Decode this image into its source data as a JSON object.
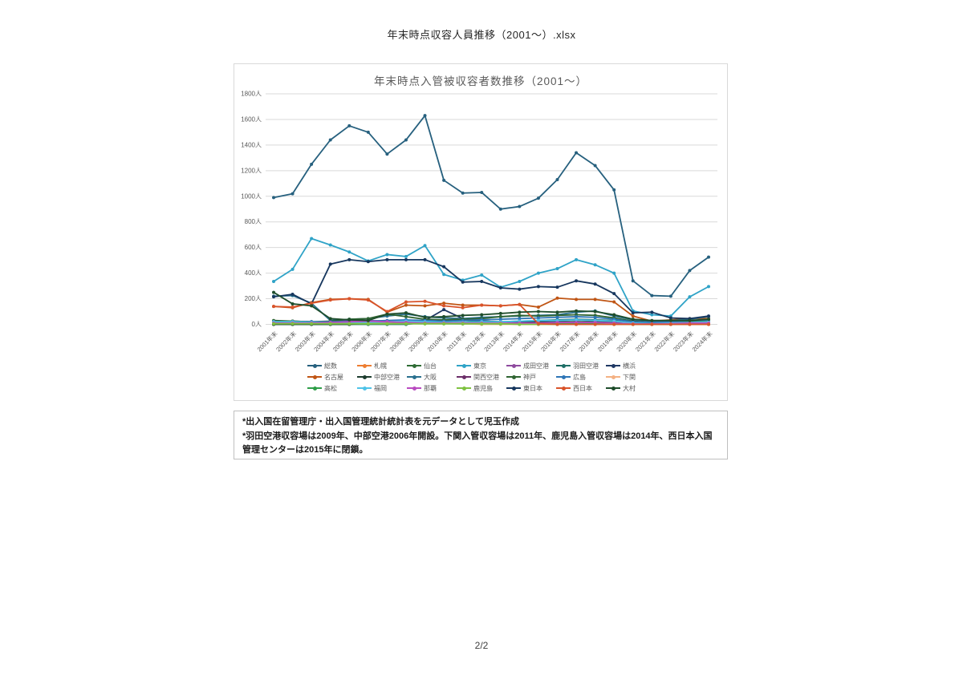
{
  "doc": {
    "title": "年末時点収容人員推移（2001〜）.xlsx"
  },
  "footer": {
    "page": "2/2"
  },
  "notes": {
    "line1": "*出入国在留管理庁・出入国管理統計統計表を元データとして児玉作成",
    "line2": "*羽田空港収容場は2009年、中部空港2006年開設。下関入管収容場は2011年、鹿児島入管収容場は2014年、西日本入国管理センターは2015年に閉鎖。"
  },
  "colors": {
    "grid": "#d9d9d9",
    "axis_text": "#595959",
    "panel_border": "#d9d9d9",
    "notes_border": "#bfbfbf"
  },
  "chart_data": {
    "type": "line",
    "title": "年末時点入管被収容者数推移（2001〜）",
    "xlabel": "",
    "ylabel": "",
    "ylim": [
      0,
      1800
    ],
    "ystep": 200,
    "unit_suffix": "人",
    "grid": true,
    "legend_position": "bottom",
    "y_ticks": [
      "0人",
      "200人",
      "400人",
      "600人",
      "800人",
      "1000人",
      "1200人",
      "1400人",
      "1600人",
      "1800人"
    ],
    "categories": [
      "2001年末",
      "2002年末",
      "2003年末",
      "2004年末",
      "2005年末",
      "2006年末",
      "2007年末",
      "2008年末",
      "2009年末",
      "2010年末",
      "2011年末",
      "2012年末",
      "2013年末",
      "2014年末",
      "2015年末",
      "2016年末",
      "2017年末",
      "2018年末",
      "2019年末",
      "2020年末",
      "2021年末",
      "2022年末",
      "2023年末",
      "2024年末"
    ],
    "series": [
      {
        "name": "総数",
        "color": "#26607E",
        "values": [
          990,
          1020,
          1250,
          1440,
          1550,
          1500,
          1330,
          1440,
          1630,
          1125,
          1025,
          1030,
          900,
          920,
          985,
          1130,
          1340,
          1240,
          1050,
          340,
          225,
          220,
          420,
          525
        ]
      },
      {
        "name": "札幌",
        "color": "#ED7D31",
        "values": [
          12,
          10,
          8,
          10,
          12,
          10,
          8,
          14,
          12,
          10,
          8,
          8,
          6,
          5,
          6,
          10,
          12,
          10,
          6,
          2,
          1,
          3,
          5,
          6
        ]
      },
      {
        "name": "仙台",
        "color": "#2E6B34",
        "values": [
          6,
          5,
          5,
          6,
          5,
          6,
          5,
          8,
          10,
          6,
          5,
          5,
          4,
          4,
          5,
          8,
          10,
          8,
          5,
          1,
          0,
          1,
          4,
          5
        ]
      },
      {
        "name": "東京",
        "color": "#2FA3C7",
        "values": [
          335,
          430,
          670,
          620,
          565,
          495,
          545,
          530,
          615,
          390,
          345,
          385,
          290,
          335,
          400,
          435,
          505,
          465,
          400,
          105,
          75,
          65,
          215,
          295
        ]
      },
      {
        "name": "成田空港",
        "color": "#8E4A9E",
        "values": [
          15,
          14,
          16,
          20,
          35,
          30,
          25,
          20,
          15,
          14,
          10,
          14,
          10,
          10,
          15,
          16,
          20,
          15,
          14,
          4,
          2,
          4,
          10,
          12
        ]
      },
      {
        "name": "羽田空港",
        "color": "#1E6E66",
        "values": [
          0,
          0,
          0,
          0,
          0,
          0,
          0,
          0,
          15,
          25,
          30,
          25,
          20,
          25,
          30,
          35,
          40,
          35,
          30,
          10,
          5,
          10,
          20,
          25
        ]
      },
      {
        "name": "横浜",
        "color": "#1F3864",
        "values": [
          20,
          25,
          20,
          15,
          15,
          15,
          20,
          25,
          30,
          115,
          45,
          25,
          20,
          20,
          25,
          30,
          35,
          30,
          25,
          10,
          8,
          10,
          15,
          20
        ]
      },
      {
        "name": "名古屋",
        "color": "#C05514",
        "values": [
          140,
          130,
          170,
          195,
          200,
          195,
          95,
          150,
          145,
          165,
          150,
          150,
          145,
          155,
          135,
          205,
          195,
          195,
          175,
          65,
          25,
          35,
          45,
          45
        ]
      },
      {
        "name": "中部空港",
        "color": "#1C3C2E",
        "values": [
          0,
          0,
          0,
          0,
          0,
          10,
          15,
          20,
          15,
          14,
          14,
          14,
          10,
          10,
          15,
          20,
          20,
          20,
          15,
          5,
          4,
          5,
          10,
          10
        ]
      },
      {
        "name": "大阪",
        "color": "#29708E",
        "values": [
          220,
          225,
          165,
          30,
          40,
          45,
          65,
          80,
          60,
          50,
          45,
          55,
          60,
          65,
          70,
          75,
          95,
          105,
          65,
          35,
          25,
          30,
          40,
          60
        ]
      },
      {
        "name": "関西空港",
        "color": "#6B2E68",
        "values": [
          15,
          14,
          10,
          10,
          10,
          10,
          10,
          10,
          10,
          10,
          10,
          10,
          5,
          5,
          10,
          10,
          10,
          10,
          10,
          4,
          2,
          4,
          5,
          6
        ]
      },
      {
        "name": "神戸",
        "color": "#2F6432",
        "values": [
          30,
          25,
          20,
          25,
          40,
          45,
          80,
          60,
          40,
          35,
          40,
          45,
          60,
          70,
          65,
          70,
          75,
          70,
          50,
          25,
          15,
          20,
          25,
          30
        ]
      },
      {
        "name": "広島",
        "color": "#2E75B6",
        "values": [
          20,
          20,
          20,
          20,
          25,
          25,
          30,
          35,
          30,
          25,
          30,
          35,
          40,
          45,
          50,
          55,
          60,
          55,
          40,
          20,
          15,
          20,
          30,
          35
        ]
      },
      {
        "name": "下関",
        "color": "#F4B183",
        "values": [
          15,
          14,
          10,
          10,
          10,
          10,
          10,
          10,
          10,
          10,
          5,
          0,
          0,
          0,
          0,
          0,
          0,
          0,
          0,
          0,
          0,
          0,
          0,
          0
        ]
      },
      {
        "name": "高松",
        "color": "#2F9E49",
        "values": [
          10,
          8,
          6,
          5,
          5,
          5,
          5,
          6,
          5,
          5,
          5,
          5,
          4,
          4,
          5,
          6,
          10,
          8,
          5,
          1,
          0,
          1,
          4,
          5
        ]
      },
      {
        "name": "福岡",
        "color": "#4FC3E8",
        "values": [
          20,
          20,
          15,
          15,
          15,
          15,
          20,
          25,
          20,
          15,
          15,
          20,
          20,
          25,
          30,
          30,
          35,
          30,
          25,
          10,
          5,
          10,
          15,
          20
        ]
      },
      {
        "name": "那覇",
        "color": "#B94BC0",
        "values": [
          10,
          10,
          10,
          15,
          20,
          25,
          20,
          15,
          10,
          10,
          10,
          10,
          10,
          10,
          10,
          15,
          15,
          15,
          10,
          4,
          4,
          5,
          10,
          10
        ]
      },
      {
        "name": "鹿児島",
        "color": "#7FC241",
        "values": [
          5,
          5,
          5,
          5,
          5,
          5,
          5,
          5,
          5,
          5,
          5,
          5,
          5,
          0,
          0,
          0,
          0,
          0,
          0,
          0,
          0,
          0,
          0,
          0
        ]
      },
      {
        "name": "東日本",
        "color": "#17375E",
        "values": [
          215,
          235,
          160,
          470,
          505,
          490,
          505,
          505,
          505,
          450,
          330,
          335,
          285,
          275,
          295,
          290,
          340,
          315,
          240,
          90,
          95,
          50,
          45,
          65
        ]
      },
      {
        "name": "西日本",
        "color": "#D9542B",
        "values": [
          140,
          135,
          165,
          190,
          200,
          190,
          100,
          175,
          180,
          145,
          130,
          150,
          145,
          155,
          5,
          0,
          0,
          0,
          0,
          0,
          0,
          0,
          0,
          0
        ]
      },
      {
        "name": "大村",
        "color": "#1E4D2B",
        "values": [
          250,
          160,
          145,
          45,
          35,
          30,
          80,
          90,
          55,
          60,
          70,
          75,
          85,
          95,
          100,
          95,
          105,
          100,
          75,
          40,
          30,
          30,
          30,
          40
        ]
      }
    ]
  }
}
